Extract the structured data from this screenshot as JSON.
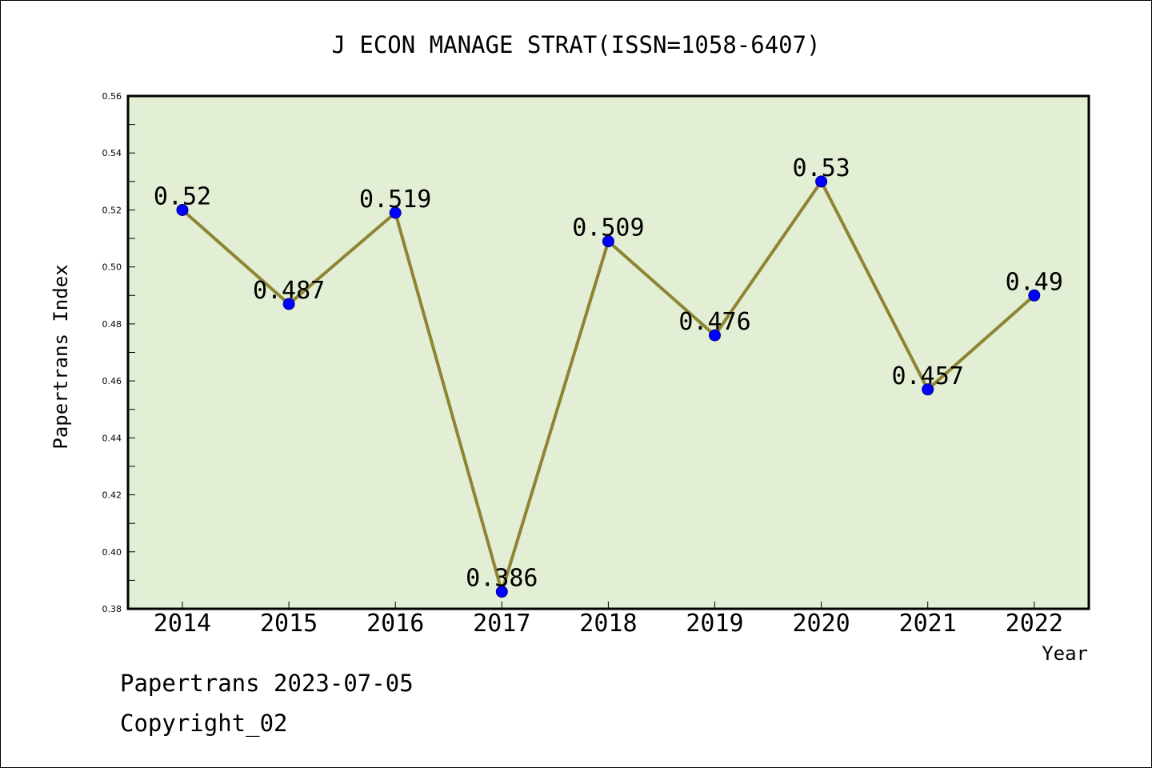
{
  "chart_data": {
    "type": "line",
    "title": "J ECON MANAGE STRAT(ISSN=1058-6407)",
    "xlabel": "Year",
    "ylabel": "Papertrans Index",
    "categories": [
      "2014",
      "2015",
      "2016",
      "2017",
      "2018",
      "2019",
      "2020",
      "2021",
      "2022"
    ],
    "series": [
      {
        "values": [
          0.52,
          0.487,
          0.519,
          0.386,
          0.509,
          0.476,
          0.53,
          0.457,
          0.49
        ],
        "data_labels": [
          "0.52",
          "0.487",
          "0.519",
          "0.386",
          "0.509",
          "0.476",
          "0.53",
          "0.457",
          "0.49"
        ],
        "line_color": "#8f8433",
        "marker_color": "#0000ff"
      }
    ],
    "ylim": [
      0.38,
      0.56
    ],
    "yticks": [
      "0.38",
      "0.40",
      "0.42",
      "0.44",
      "0.46",
      "0.48",
      "0.50",
      "0.52",
      "0.54",
      "0.56"
    ],
    "grid": false,
    "plot_background": "#e2efd5"
  },
  "footer": {
    "line1": "Papertrans 2023-07-05",
    "line2": "Copyright_02"
  }
}
